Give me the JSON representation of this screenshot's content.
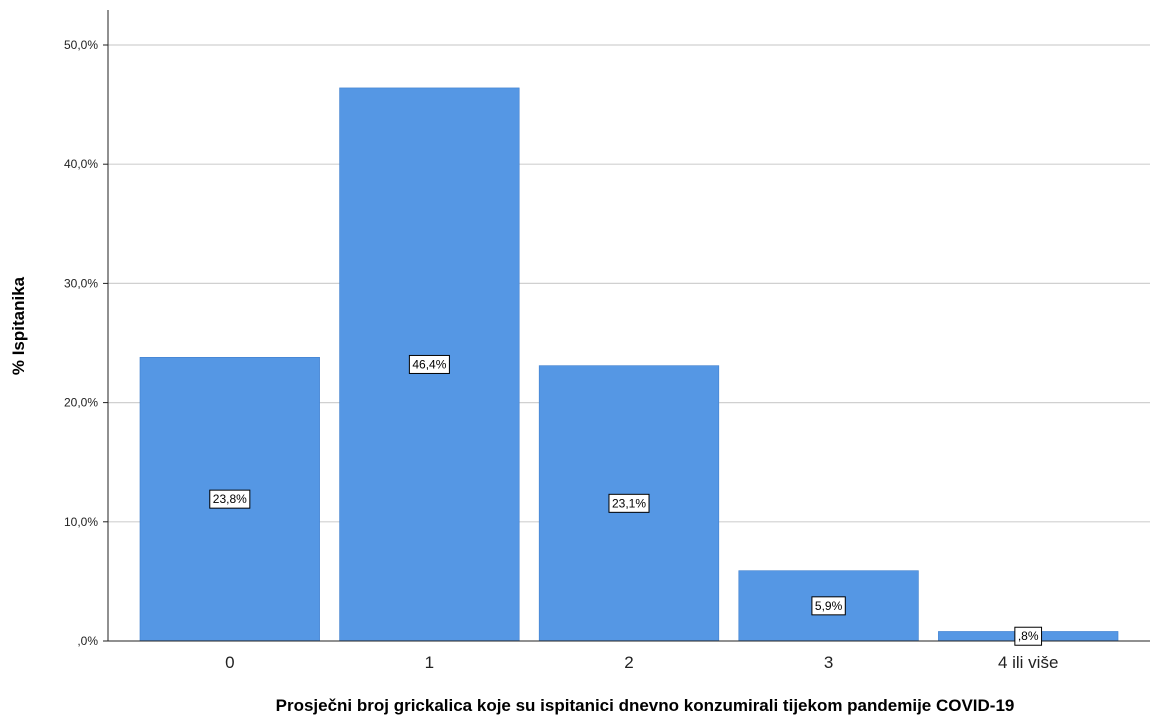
{
  "chart_data": {
    "type": "bar",
    "categories": [
      "0",
      "1",
      "2",
      "3",
      "4 ili više"
    ],
    "values": [
      23.8,
      46.4,
      23.1,
      5.9,
      0.8
    ],
    "data_labels": [
      "23,8%",
      "46,4%",
      "23,1%",
      "5,9%",
      ",8%"
    ],
    "xlabel": "Prosječni broj grickalica koje su ispitanici dnevno konzumirali tijekom pandemije COVID-19",
    "ylabel": "% Ispitanika",
    "ylim": [
      0,
      50
    ],
    "yticks": [
      0,
      10,
      20,
      30,
      40,
      50
    ],
    "ytick_labels": [
      ",0%",
      "10,0%",
      "20,0%",
      "30,0%",
      "40,0%",
      "50,0%"
    ],
    "grid": true,
    "bar_color": "#5597e4",
    "grid_color": "#d0d0d0",
    "axis_color": "#222222"
  }
}
